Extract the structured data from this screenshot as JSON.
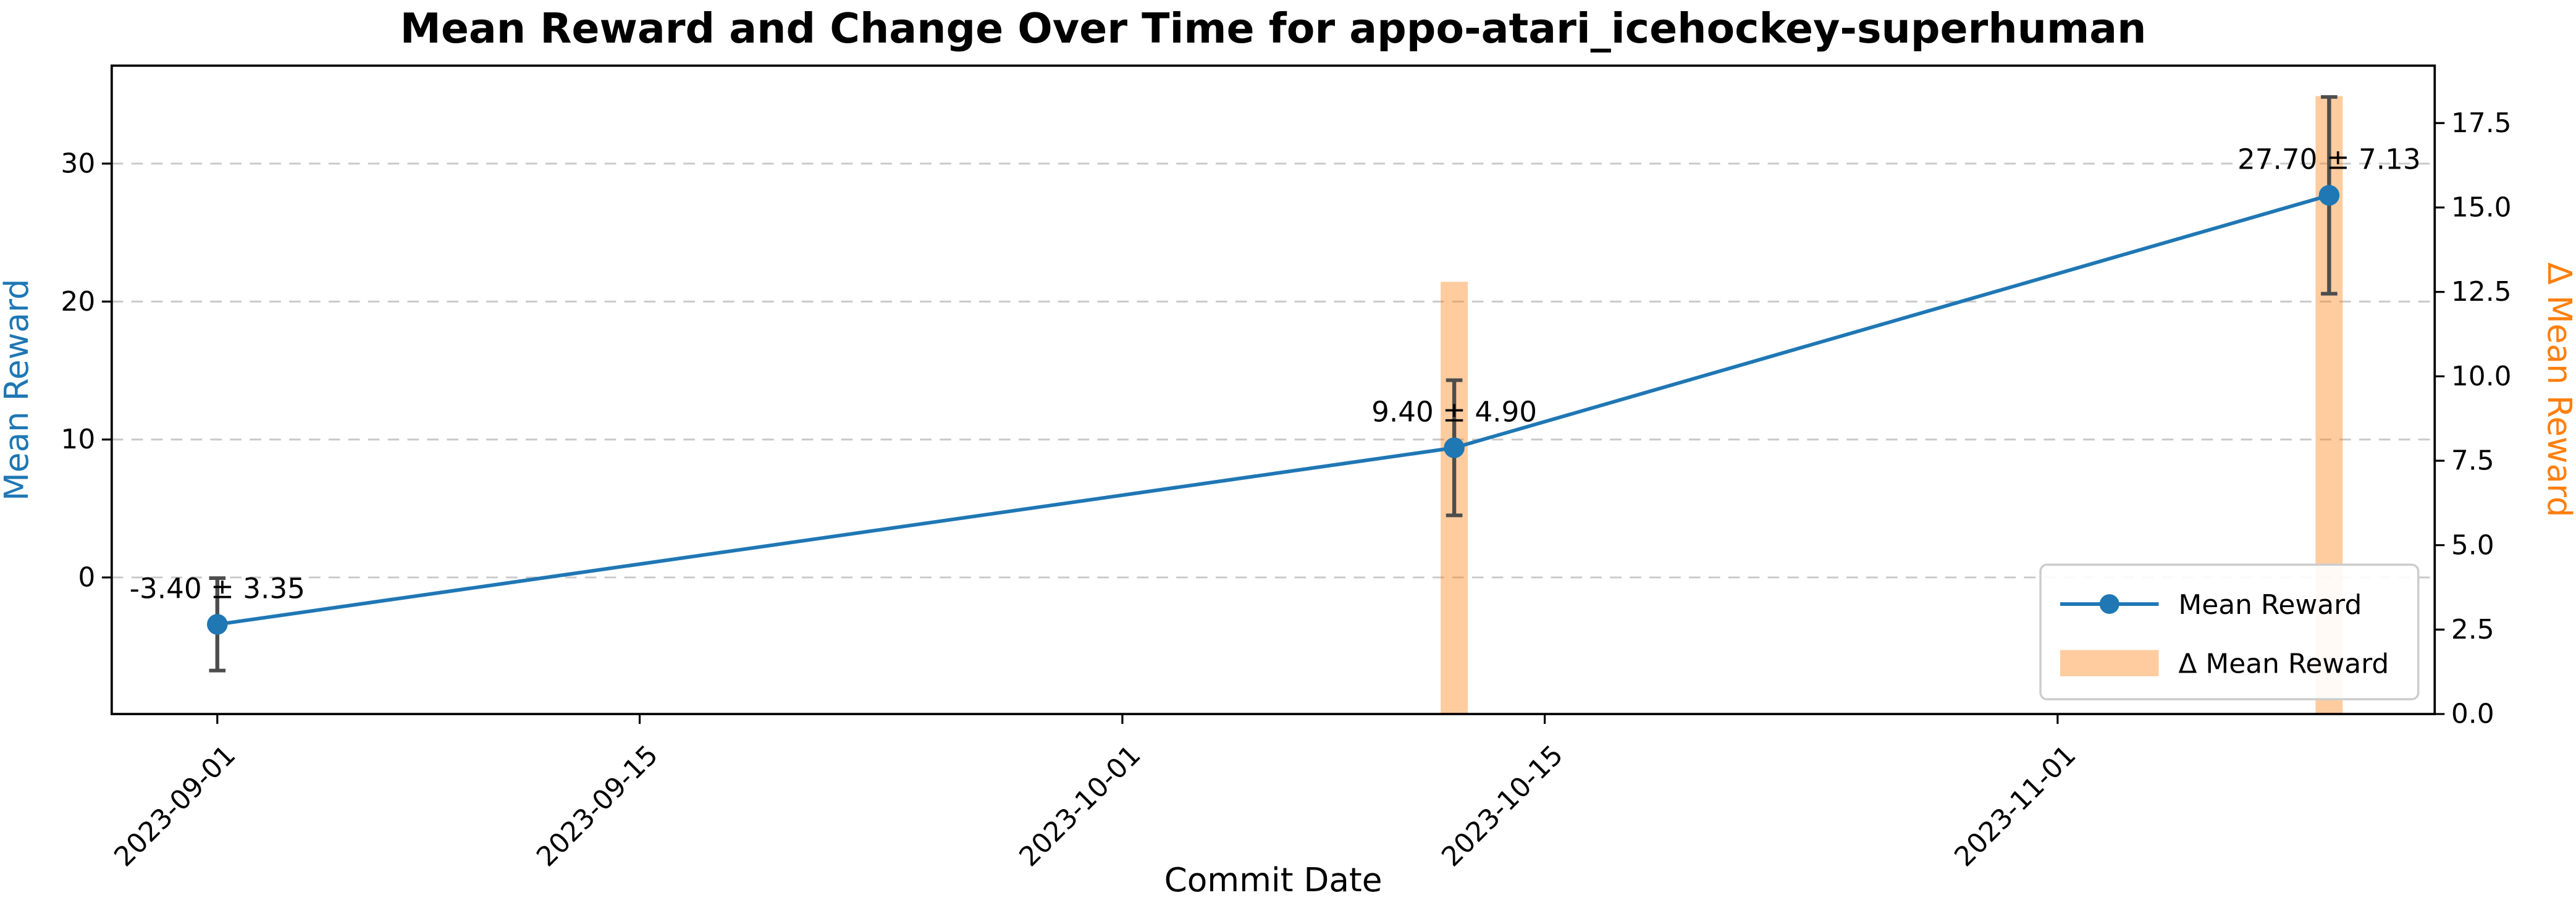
{
  "chart_data": {
    "type": "line",
    "title": "Mean Reward and Change Over Time for appo-atari_icehockey-superhuman",
    "xlabel": "Commit Date",
    "grid": {
      "show": true,
      "style": "dashed",
      "color": "#c9c9c9"
    },
    "x_axis": {
      "xlim_days": [
        -3.5,
        73.5
      ],
      "ticks": [
        {
          "label": "2023-09-01",
          "day": 0
        },
        {
          "label": "2023-09-15",
          "day": 14
        },
        {
          "label": "2023-10-01",
          "day": 30
        },
        {
          "label": "2023-10-15",
          "day": 44
        },
        {
          "label": "2023-11-01",
          "day": 61
        }
      ]
    },
    "left_axis": {
      "label": "Mean Reward",
      "label_color": "#1f77b4",
      "ylim": [
        -9.9,
        37.1
      ],
      "ticks": [
        {
          "label": "0",
          "value": 0
        },
        {
          "label": "10",
          "value": 10
        },
        {
          "label": "20",
          "value": 20
        },
        {
          "label": "30",
          "value": 30
        }
      ]
    },
    "right_axis": {
      "label": "Δ Mean Reward",
      "label_color": "#ff7f0e",
      "ylim": [
        0,
        19.2
      ],
      "ticks": [
        {
          "label": "0.0",
          "value": 0.0
        },
        {
          "label": "2.5",
          "value": 2.5
        },
        {
          "label": "5.0",
          "value": 5.0
        },
        {
          "label": "7.5",
          "value": 7.5
        },
        {
          "label": "10.0",
          "value": 10.0
        },
        {
          "label": "12.5",
          "value": 12.5
        },
        {
          "label": "15.0",
          "value": 15.0
        },
        {
          "label": "17.5",
          "value": 17.5
        }
      ]
    },
    "series": {
      "name": "Mean Reward",
      "color": "#1f77b4",
      "marker": "circle",
      "points": [
        {
          "date": "2023-09-01",
          "day": 0,
          "mean": -3.4,
          "std": 3.35,
          "annotation": "-3.40 ± 3.35"
        },
        {
          "date": "2023-10-12",
          "day": 41,
          "mean": 9.4,
          "std": 4.9,
          "annotation": "9.40 ± 4.90"
        },
        {
          "date": "2023-11-10",
          "day": 70,
          "mean": 27.7,
          "std": 7.13,
          "annotation": "27.70 ± 7.13"
        }
      ]
    },
    "errorbar": {
      "color": "#4d4d4d",
      "capsize": 5
    },
    "delta_bars": {
      "name": "Δ Mean Reward",
      "color": "#ff7f0e",
      "alpha": 0.4,
      "bar_width_days": 0.9,
      "values": [
        {
          "day": 41,
          "delta": 12.8
        },
        {
          "day": 70,
          "delta": 18.3
        }
      ]
    },
    "legend": {
      "position": "lower right",
      "entries": [
        {
          "label": "Mean Reward",
          "type": "line"
        },
        {
          "label": "Δ Mean Reward",
          "type": "patch"
        }
      ]
    }
  }
}
